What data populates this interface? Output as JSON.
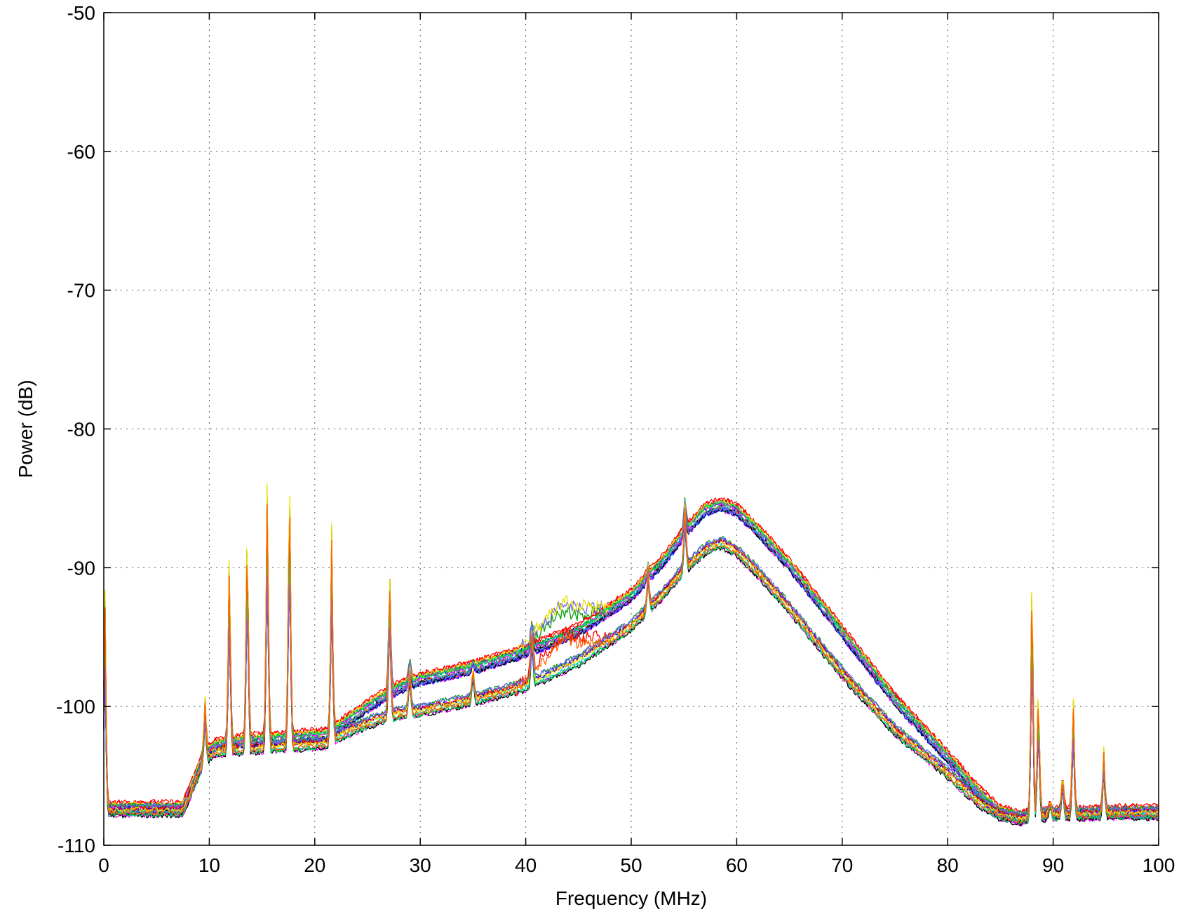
{
  "chart_data": {
    "type": "line",
    "title": "",
    "xlabel": "Frequency (MHz)",
    "ylabel": "Power (dB)",
    "xlim": [
      0,
      100
    ],
    "ylim": [
      -110,
      -50
    ],
    "xticks": [
      0,
      10,
      20,
      30,
      40,
      50,
      60,
      70,
      80,
      90,
      100
    ],
    "yticks": [
      -50,
      -60,
      -70,
      -80,
      -90,
      -100,
      -110
    ],
    "grid": true,
    "legend": "none",
    "series_colors": [
      "#0000ff",
      "#00a000",
      "#ff0000",
      "#00c8c8",
      "#ff00ff",
      "#e6e600",
      "#000000",
      "#00e060",
      "#7060ff",
      "#ff6000"
    ],
    "base_envelopes": {
      "upper_group": {
        "x": [
          0,
          7.5,
          9.5,
          10.5,
          12,
          14,
          16,
          18,
          20,
          21.5,
          22,
          24,
          26,
          28,
          30,
          35,
          40,
          45,
          50,
          53,
          55,
          57,
          58.5,
          60,
          62,
          65,
          70,
          75,
          80,
          83,
          85,
          87,
          88,
          90,
          92,
          95,
          100
        ],
        "y": [
          -107.3,
          -107.3,
          -103.5,
          -102.8,
          -102.6,
          -102.4,
          -102.3,
          -102.2,
          -102.1,
          -102.0,
          -101.6,
          -100.5,
          -99.5,
          -98.6,
          -98.0,
          -97.2,
          -96.0,
          -94.5,
          -92.0,
          -89.5,
          -87.5,
          -85.8,
          -85.4,
          -85.8,
          -87.3,
          -89.8,
          -94.6,
          -99.5,
          -103.6,
          -106.2,
          -107.6,
          -108.0,
          -107.8,
          -107.7,
          -107.7,
          -107.6,
          -107.6
        ]
      },
      "lower_group": {
        "x": [
          0,
          7.5,
          9.5,
          10.5,
          12,
          14,
          16,
          18,
          20,
          21.5,
          22,
          24,
          26,
          28,
          30,
          35,
          40,
          45,
          50,
          53,
          55,
          57,
          58.5,
          60,
          62,
          65,
          70,
          75,
          80,
          83,
          85,
          87,
          88,
          90,
          92,
          95,
          100
        ],
        "y": [
          -107.6,
          -107.6,
          -104.0,
          -103.3,
          -103.2,
          -103.1,
          -103.0,
          -102.9,
          -102.8,
          -102.7,
          -102.3,
          -101.6,
          -101.0,
          -100.6,
          -100.4,
          -99.6,
          -98.6,
          -96.8,
          -94.3,
          -92.0,
          -90.2,
          -88.8,
          -88.3,
          -88.9,
          -90.4,
          -93.0,
          -97.7,
          -101.8,
          -104.9,
          -107.0,
          -107.9,
          -108.2,
          -108.0,
          -107.9,
          -107.9,
          -107.8,
          -107.8
        ]
      }
    },
    "series_count": 30,
    "spikes": [
      {
        "x": 0.1,
        "y": -88.5
      },
      {
        "x": 9.6,
        "y": -99.0
      },
      {
        "x": 11.9,
        "y": -86.8
      },
      {
        "x": 13.6,
        "y": -83.5
      },
      {
        "x": 15.5,
        "y": -80.2
      },
      {
        "x": 17.6,
        "y": -78.5
      },
      {
        "x": 21.6,
        "y": -85.8
      },
      {
        "x": 27.1,
        "y": -89.0
      },
      {
        "x": 29.0,
        "y": -96.0
      },
      {
        "x": 35.0,
        "y": -96.5
      },
      {
        "x": 40.6,
        "y": -93.2
      },
      {
        "x": 51.6,
        "y": -89.5
      },
      {
        "x": 55.1,
        "y": -84.4
      },
      {
        "x": 88.0,
        "y": -86.0
      },
      {
        "x": 88.6,
        "y": -96.5
      },
      {
        "x": 89.7,
        "y": -106.5
      },
      {
        "x": 90.9,
        "y": -104.1
      },
      {
        "x": 91.9,
        "y": -97.8
      },
      {
        "x": 94.8,
        "y": -102.6
      }
    ],
    "bump_region": {
      "x": [
        39,
        48
      ],
      "y_peak": -92.8
    }
  }
}
